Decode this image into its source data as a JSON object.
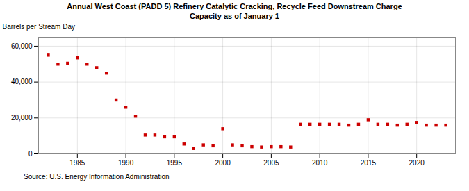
{
  "chart_data": {
    "type": "scatter",
    "title": "Annual West Coast (PADD 5) Refinery Catalytic Cracking, Recycle Feed Downstream Charge\nCapacity as of January 1",
    "ylabel": "Barrels per Stream Day",
    "source": "Source: U.S. Energy Information Administration",
    "color": "#cc0000",
    "marker": "square",
    "x": [
      1982,
      1983,
      1984,
      1985,
      1986,
      1987,
      1988,
      1989,
      1990,
      1991,
      1992,
      1993,
      1994,
      1995,
      1996,
      1997,
      1998,
      1999,
      2000,
      2001,
      2002,
      2003,
      2004,
      2005,
      2006,
      2007,
      2008,
      2009,
      2010,
      2011,
      2012,
      2013,
      2014,
      2015,
      2016,
      2017,
      2018,
      2019,
      2020,
      2021,
      2022,
      2023
    ],
    "values": [
      55000,
      50000,
      50500,
      53500,
      50000,
      48000,
      45000,
      30000,
      26000,
      21000,
      10500,
      10500,
      9500,
      9500,
      5500,
      3000,
      5000,
      4500,
      14000,
      5000,
      4500,
      4000,
      3800,
      4000,
      4000,
      3800,
      16500,
      16500,
      16500,
      16500,
      16500,
      16000,
      16500,
      19000,
      16500,
      16500,
      16000,
      16500,
      17500,
      16000,
      16000,
      16000
    ],
    "xlim": [
      1981,
      2024
    ],
    "xticks": [
      1985,
      1990,
      1995,
      2000,
      2005,
      2010,
      2015,
      2020
    ],
    "ylim": [
      0,
      65000
    ],
    "yticks": [
      0,
      {
        "value": 20000,
        "label": "20,000"
      },
      {
        "value": 40000,
        "label": "40,000"
      },
      {
        "value": 60000,
        "label": "60,000"
      }
    ],
    "grid": true
  }
}
